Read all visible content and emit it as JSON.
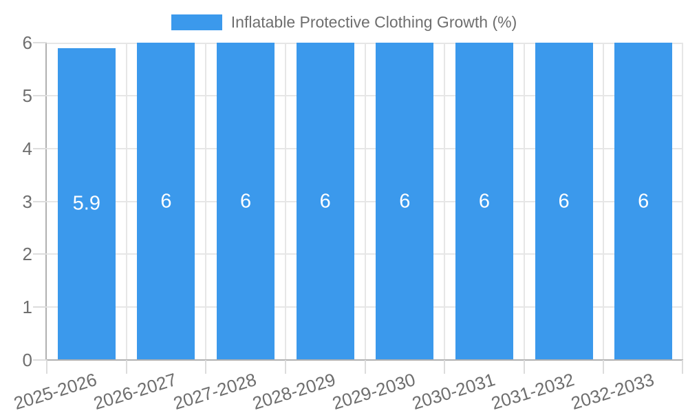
{
  "chart_data": {
    "type": "bar",
    "title": "Inflatable Protective Clothing Growth (%)",
    "categories": [
      "2025-2026",
      "2026-2027",
      "2027-2028",
      "2028-2029",
      "2029-2030",
      "2030-2031",
      "2031-2032",
      "2032-2033"
    ],
    "values": [
      5.9,
      6,
      6,
      6,
      6,
      6,
      6,
      6
    ],
    "bar_value_labels": [
      "5.9",
      "6",
      "6",
      "6",
      "6",
      "6",
      "6",
      "6"
    ],
    "xlabel": "",
    "ylabel": "",
    "ylim": [
      0,
      6
    ],
    "yticks": [
      "0",
      "1",
      "2",
      "3",
      "4",
      "5",
      "6"
    ],
    "grid": true,
    "legend_position": "top-center",
    "x_tick_rotation_deg": -17,
    "colors": {
      "bar": "#3b99ec",
      "grid": "#e6e6e6",
      "axis_line": "#b0b0b0",
      "tick_mark": "#dcdcdc",
      "tick_text": "#6e6e6e",
      "bar_label_text": "#ffffff",
      "background": "#ffffff"
    }
  }
}
